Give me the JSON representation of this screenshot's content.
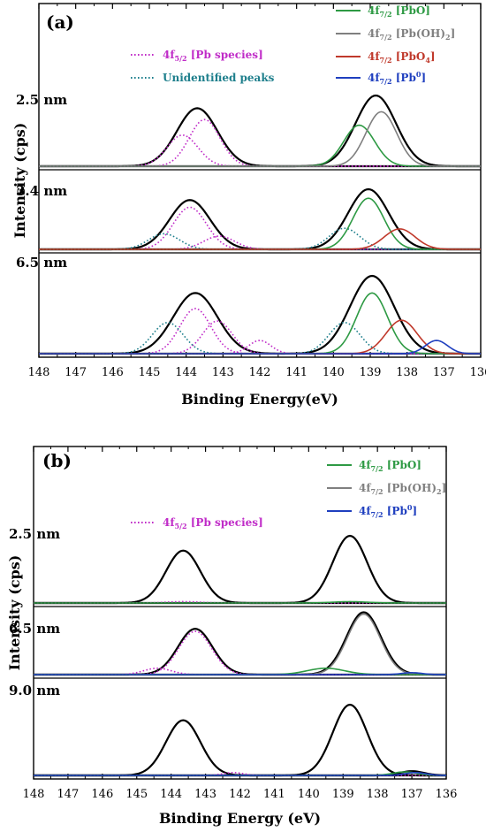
{
  "chart_data": [
    {
      "panel_label": "(a)",
      "type": "line",
      "xlabel": "Binding Energy(eV)",
      "ylabel": "Intensity (cps)",
      "xlim": [
        148,
        136
      ],
      "x_ticks": [
        148,
        147,
        146,
        145,
        144,
        143,
        142,
        141,
        140,
        139,
        138,
        137,
        136
      ],
      "legend": [
        {
          "prefix": "4f",
          "sub": "7/2",
          "text": " [PbO]",
          "color": "#2e9a44",
          "style": "solid"
        },
        {
          "prefix": "4f",
          "sub": "7/2",
          "text": " [Pb(OH)",
          "sub2": "2",
          "text2": "]",
          "color": "#7f7f7f",
          "style": "solid"
        },
        {
          "prefix": "4f",
          "sub": "7/2",
          "text": " [PbO",
          "sub2": "4",
          "text2": "]",
          "color": "#c0392b",
          "style": "solid"
        },
        {
          "prefix": "4f",
          "sub": "7/2",
          "text": " [Pb",
          "sup": "0",
          "text2": "]",
          "color": "#1f3fbf",
          "style": "solid"
        },
        {
          "prefix": "4f",
          "sub": "5/2",
          "text": " [Pb species]",
          "color": "#c02cc8",
          "style": "dotted"
        },
        {
          "prefix": "",
          "sub": "",
          "text": "Unidentified peaks",
          "color": "#1e7f8c",
          "style": "dotted"
        }
      ],
      "spectra": [
        {
          "label": "2.5 nm",
          "peaks": [
            {
              "component": "envelope",
              "color": "#000000",
              "style": "solid",
              "center": 143.7,
              "amp": 0.82,
              "sigma": 0.55
            },
            {
              "component": "envelope",
              "color": "#000000",
              "style": "solid",
              "center": 138.85,
              "amp": 1.0,
              "sigma": 0.55
            },
            {
              "component": "4f5/2 [Pb species]",
              "color": "#c02cc8",
              "style": "dotted",
              "center": 144.1,
              "amp": 0.44,
              "sigma": 0.42
            },
            {
              "component": "4f5/2 [Pb species]",
              "color": "#c02cc8",
              "style": "dotted",
              "center": 143.5,
              "amp": 0.66,
              "sigma": 0.42
            },
            {
              "component": "4f7/2 [PbO]",
              "color": "#2e9a44",
              "style": "solid",
              "center": 139.3,
              "amp": 0.58,
              "sigma": 0.42
            },
            {
              "component": "4f7/2 [Pb(OH)2]",
              "color": "#7f7f7f",
              "style": "solid",
              "center": 138.7,
              "amp": 0.77,
              "sigma": 0.42
            }
          ]
        },
        {
          "label": "3.4 nm",
          "peaks": [
            {
              "component": "envelope",
              "color": "#000000",
              "style": "solid",
              "center": 143.9,
              "amp": 0.82,
              "sigma": 0.55
            },
            {
              "component": "envelope",
              "color": "#000000",
              "style": "solid",
              "center": 139.05,
              "amp": 1.0,
              "sigma": 0.55
            },
            {
              "component": "4f5/2 [Pb species]",
              "color": "#c02cc8",
              "style": "dotted",
              "center": 143.9,
              "amp": 0.7,
              "sigma": 0.45
            },
            {
              "component": "4f5/2 [Pb species]",
              "color": "#c02cc8",
              "style": "dotted",
              "center": 143.1,
              "amp": 0.22,
              "sigma": 0.42
            },
            {
              "component": "Unidentified peaks",
              "color": "#1e7f8c",
              "style": "dotted",
              "center": 144.6,
              "amp": 0.26,
              "sigma": 0.42
            },
            {
              "component": "Unidentified peaks",
              "color": "#1e7f8c",
              "style": "dotted",
              "center": 139.7,
              "amp": 0.35,
              "sigma": 0.42
            },
            {
              "component": "4f7/2 [PbO]",
              "color": "#2e9a44",
              "style": "solid",
              "center": 139.05,
              "amp": 0.85,
              "sigma": 0.42
            },
            {
              "component": "4f7/2 [PbO4]",
              "color": "#c0392b",
              "style": "solid",
              "center": 138.2,
              "amp": 0.34,
              "sigma": 0.42
            }
          ]
        },
        {
          "label": "6.5 nm",
          "peaks": [
            {
              "component": "envelope",
              "color": "#000000",
              "style": "solid",
              "center": 143.75,
              "amp": 0.78,
              "sigma": 0.6
            },
            {
              "component": "envelope",
              "color": "#000000",
              "style": "solid",
              "center": 138.95,
              "amp": 1.0,
              "sigma": 0.6
            },
            {
              "component": "4f5/2 [Pb species]",
              "color": "#c02cc8",
              "style": "dotted",
              "center": 143.75,
              "amp": 0.58,
              "sigma": 0.42
            },
            {
              "component": "4f5/2 [Pb species]",
              "color": "#c02cc8",
              "style": "dotted",
              "center": 143.15,
              "amp": 0.42,
              "sigma": 0.4
            },
            {
              "component": "4f5/2 [Pb species]",
              "color": "#c02cc8",
              "style": "dotted",
              "center": 142.0,
              "amp": 0.17,
              "sigma": 0.3
            },
            {
              "component": "Unidentified peaks",
              "color": "#1e7f8c",
              "style": "dotted",
              "center": 144.5,
              "amp": 0.4,
              "sigma": 0.42
            },
            {
              "component": "Unidentified peaks",
              "color": "#1e7f8c",
              "style": "dotted",
              "center": 139.7,
              "amp": 0.4,
              "sigma": 0.42
            },
            {
              "component": "4f7/2 [PbO]",
              "color": "#2e9a44",
              "style": "solid",
              "center": 138.95,
              "amp": 0.78,
              "sigma": 0.42
            },
            {
              "component": "4f7/2 [PbO4]",
              "color": "#c0392b",
              "style": "solid",
              "center": 138.15,
              "amp": 0.43,
              "sigma": 0.42
            },
            {
              "component": "4f7/2 [Pb0]",
              "color": "#1f3fbf",
              "style": "solid",
              "center": 137.2,
              "amp": 0.17,
              "sigma": 0.3
            }
          ]
        }
      ]
    },
    {
      "panel_label": "(b)",
      "type": "line",
      "xlabel": "Binding Energy (eV)",
      "ylabel": "Intensity (cps)",
      "xlim": [
        148,
        136
      ],
      "x_ticks": [
        148,
        147,
        146,
        145,
        144,
        143,
        142,
        141,
        140,
        139,
        138,
        137,
        136
      ],
      "legend": [
        {
          "prefix": "4f",
          "sub": "7/2",
          "text": " [PbO]",
          "color": "#2e9a44",
          "style": "solid"
        },
        {
          "prefix": "4f",
          "sub": "7/2",
          "text": " [Pb(OH)",
          "sub2": "2",
          "text2": "]",
          "color": "#7f7f7f",
          "style": "solid"
        },
        {
          "prefix": "4f",
          "sub": "7/2",
          "text": " [Pb",
          "sup": "0",
          "text2": "]",
          "color": "#1f3fbf",
          "style": "solid"
        },
        {
          "prefix": "4f",
          "sub": "5/2",
          "text": " [Pb species]",
          "color": "#c02cc8",
          "style": "dotted"
        }
      ],
      "spectra": [
        {
          "label": "2.5 nm",
          "peaks": [
            {
              "component": "envelope",
              "color": "#000000",
              "style": "solid",
              "center": 143.65,
              "amp": 0.78,
              "sigma": 0.5
            },
            {
              "component": "envelope",
              "color": "#000000",
              "style": "solid",
              "center": 138.8,
              "amp": 1.0,
              "sigma": 0.5
            },
            {
              "component": "4f5/2 [Pb species]",
              "color": "#c02cc8",
              "style": "dotted",
              "center": 143.65,
              "amp": 0.02,
              "sigma": 0.5
            },
            {
              "component": "4f7/2 [PbO]",
              "color": "#2e9a44",
              "style": "solid",
              "center": 138.8,
              "amp": 0.02,
              "sigma": 0.5
            }
          ]
        },
        {
          "label": "6.5 nm",
          "peaks": [
            {
              "component": "envelope",
              "color": "#000000",
              "style": "solid",
              "center": 143.3,
              "amp": 0.72,
              "sigma": 0.5
            },
            {
              "component": "envelope",
              "color": "#000000",
              "style": "solid",
              "center": 138.4,
              "amp": 0.98,
              "sigma": 0.5
            },
            {
              "component": "4f5/2 [Pb species]",
              "color": "#c02cc8",
              "style": "dotted",
              "center": 143.3,
              "amp": 0.68,
              "sigma": 0.48
            },
            {
              "component": "4f5/2 [Pb species]",
              "color": "#c02cc8",
              "style": "dotted",
              "center": 144.4,
              "amp": 0.1,
              "sigma": 0.4
            },
            {
              "component": "4f7/2 [Pb(OH)2]",
              "color": "#7f7f7f",
              "style": "solid",
              "center": 138.4,
              "amp": 0.95,
              "sigma": 0.48
            },
            {
              "component": "4f7/2 [PbO]",
              "color": "#2e9a44",
              "style": "solid",
              "center": 139.5,
              "amp": 0.1,
              "sigma": 0.55
            },
            {
              "component": "4f7/2 [Pb0]",
              "color": "#1f3fbf",
              "style": "solid",
              "center": 137.0,
              "amp": 0.03,
              "sigma": 0.3
            }
          ]
        },
        {
          "label": "9.0 nm",
          "peaks": [
            {
              "component": "envelope",
              "color": "#000000",
              "style": "solid",
              "center": 143.65,
              "amp": 0.78,
              "sigma": 0.5
            },
            {
              "component": "envelope",
              "color": "#000000",
              "style": "solid",
              "center": 138.8,
              "amp": 1.0,
              "sigma": 0.5
            },
            {
              "component": "envelope",
              "color": "#000000",
              "style": "solid",
              "center": 137.0,
              "amp": 0.06,
              "sigma": 0.35
            },
            {
              "component": "4f5/2 [Pb species]",
              "color": "#c02cc8",
              "style": "dotted",
              "center": 142.2,
              "amp": 0.04,
              "sigma": 0.3
            },
            {
              "component": "4f7/2 [PbO]",
              "color": "#2e9a44",
              "style": "solid",
              "center": 137.2,
              "amp": 0.05,
              "sigma": 0.35
            },
            {
              "component": "4f7/2 [Pb0]",
              "color": "#1f3fbf",
              "style": "solid",
              "center": 136.9,
              "amp": 0.04,
              "sigma": 0.3
            }
          ]
        }
      ]
    }
  ]
}
